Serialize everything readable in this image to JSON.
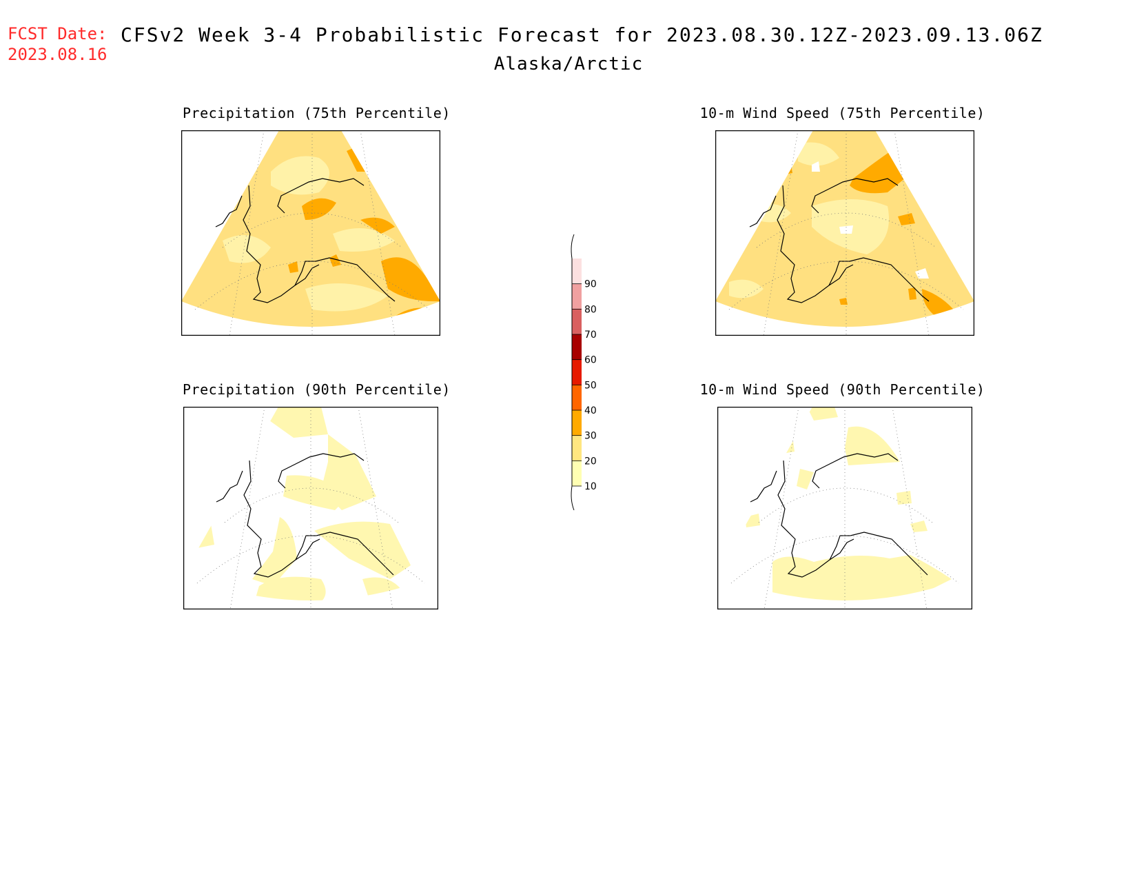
{
  "header": {
    "fcst_date_label": "FCST Date:",
    "fcst_date_value": "2023.08.16",
    "title": "CFSv2 Week 3-4 Probabilistic Forecast for 2023.08.30.12Z-2023.09.13.06Z",
    "region": "Alaska/Arctic"
  },
  "panels": [
    {
      "title": "Precipitation (75th Percentile)"
    },
    {
      "title": "10-m Wind Speed (75th Percentile)"
    },
    {
      "title": "Precipitation (90th Percentile)"
    },
    {
      "title": "10-m Wind Speed (90th Percentile)"
    }
  ],
  "colorbar": {
    "ticks": [
      "10",
      "20",
      "30",
      "40",
      "50",
      "60",
      "70",
      "80",
      "90"
    ],
    "colors": [
      "#ffffb3",
      "#ffe680",
      "#ffaa00",
      "#ff6600",
      "#e61a00",
      "#a80000",
      "#d96060",
      "#f0a0a0",
      "#fce0e0"
    ]
  },
  "colors": {
    "light_yellow": "#fff7b0",
    "yellow": "#ffe080",
    "orange": "#ffaa00",
    "fcst_red": "#ff2a2a"
  }
}
